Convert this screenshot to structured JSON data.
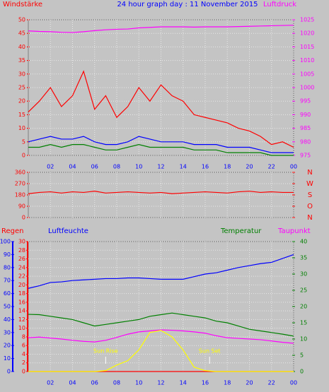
{
  "chart_data": [
    {
      "type": "line",
      "title": "24 hour graph day : 11 November 2015",
      "ylabel": "Windstärke",
      "y2label": "Luftdruck",
      "x": [
        0,
        1,
        2,
        3,
        4,
        5,
        6,
        7,
        8,
        9,
        10,
        11,
        12,
        13,
        14,
        15,
        16,
        17,
        18,
        19,
        20,
        21,
        22,
        23,
        24
      ],
      "xlim": [
        0,
        24
      ],
      "xticks": [
        {
          "value": 2,
          "label": "02"
        },
        {
          "value": 4,
          "label": "04"
        },
        {
          "value": 6,
          "label": "06"
        },
        {
          "value": 8,
          "label": "08"
        },
        10,
        12,
        14,
        16,
        18,
        20,
        22,
        {
          "value": 24,
          "label": "00"
        }
      ],
      "ylim": [
        0,
        50
      ],
      "yticks": [
        0,
        5,
        10,
        15,
        20,
        25,
        30,
        35,
        40,
        45,
        50
      ],
      "y2lim": [
        975,
        1025
      ],
      "y2ticks": [
        975,
        980,
        985,
        990,
        995,
        1000,
        1005,
        1010,
        1015,
        1020,
        1025
      ],
      "axis_colors": {
        "y": "#ff0000",
        "y2": "#ff00ff"
      },
      "series": [
        {
          "color": "#ff0000",
          "values": [
            16,
            20,
            25,
            18,
            22,
            31,
            17,
            22,
            14,
            18,
            25,
            20,
            26,
            22,
            20,
            15,
            14,
            13,
            12,
            10,
            9,
            7,
            4,
            5,
            3
          ]
        },
        {
          "color": "#008000",
          "values": [
            3,
            3,
            4,
            3,
            4,
            4,
            3,
            2,
            2,
            3,
            4,
            3,
            3,
            3,
            3,
            2,
            2,
            2,
            1,
            1,
            1,
            1,
            0,
            0,
            0
          ]
        },
        {
          "color": "#0000ff",
          "values": [
            5,
            6,
            7,
            6,
            6,
            7,
            5,
            4,
            4,
            5,
            7,
            6,
            5,
            5,
            5,
            4,
            4,
            4,
            3,
            3,
            3,
            2,
            1,
            1,
            1
          ]
        },
        {
          "color": "#ff00ff",
          "axis": "y2",
          "values": [
            1020.9,
            1020.7,
            1020.6,
            1020.4,
            1020.3,
            1020.6,
            1021.0,
            1021.3,
            1021.5,
            1021.6,
            1022.0,
            1022.2,
            1022.4,
            1022.4,
            1022.4,
            1022.3,
            1022.4,
            1022.4,
            1022.4,
            1022.5,
            1022.6,
            1022.7,
            1022.8,
            1022.9,
            1023.0
          ]
        }
      ],
      "grid": true
    },
    {
      "type": "line",
      "x": [
        0,
        1,
        2,
        3,
        4,
        5,
        6,
        7,
        8,
        9,
        10,
        11,
        12,
        13,
        14,
        15,
        16,
        17,
        18,
        19,
        20,
        21,
        22,
        23,
        24
      ],
      "xlim": [
        0,
        24
      ],
      "xticks": [
        2,
        4,
        6,
        8,
        10,
        12,
        14,
        16,
        18,
        20,
        22,
        24
      ],
      "ylim": [
        0,
        360
      ],
      "yticks": [
        0,
        90,
        180,
        270,
        360
      ],
      "y2lim": [
        0,
        360
      ],
      "y2ticks": [
        {
          "value": 360,
          "label": "N"
        },
        {
          "value": 270,
          "label": "W"
        },
        {
          "value": 180,
          "label": "S"
        },
        {
          "value": 90,
          "label": "O"
        },
        {
          "value": 0,
          "label": "N"
        }
      ],
      "axis_colors": {
        "y": "#ff0000",
        "y2": "#ff0000"
      },
      "series": [
        {
          "color": "#ff0000",
          "values": [
            190,
            200,
            205,
            195,
            205,
            200,
            210,
            195,
            200,
            205,
            200,
            195,
            200,
            190,
            195,
            200,
            205,
            200,
            195,
            205,
            210,
            200,
            205,
            200,
            200
          ]
        }
      ],
      "grid": true
    },
    {
      "type": "line",
      "x": [
        0,
        1,
        2,
        3,
        4,
        5,
        6,
        7,
        8,
        9,
        10,
        11,
        12,
        13,
        14,
        15,
        16,
        17,
        18,
        19,
        20,
        21,
        22,
        23,
        24
      ],
      "xlim": [
        0,
        24
      ],
      "xticks": [
        {
          "value": 2,
          "label": "02"
        },
        {
          "value": 4,
          "label": "04"
        },
        {
          "value": 6,
          "label": "06"
        },
        {
          "value": 8,
          "label": "08"
        },
        10,
        12,
        14,
        16,
        18,
        20,
        22,
        {
          "value": 24,
          "label": "00"
        }
      ],
      "ylim": [
        0,
        30
      ],
      "yticks": [
        0,
        2,
        4,
        6,
        8,
        10,
        12,
        14,
        16,
        18,
        20,
        22,
        24,
        26,
        28,
        30
      ],
      "y2lim": [
        0,
        40
      ],
      "y2ticks": [
        0,
        5,
        10,
        15,
        20,
        25,
        30,
        35,
        40
      ],
      "y3lim": [
        0,
        100
      ],
      "y3ticks": [
        0,
        10,
        20,
        30,
        40,
        50,
        60,
        70,
        80,
        90,
        100
      ],
      "axis_colors": {
        "y": "#ff0000",
        "y2": "#008000",
        "y3": "#0000ff"
      },
      "series": [
        {
          "name": "Regen",
          "color": "#ff0000",
          "values": [
            0,
            0,
            0,
            0,
            0,
            0,
            0,
            0,
            0,
            0,
            0,
            0,
            0,
            0,
            0,
            0,
            0,
            0,
            0,
            0,
            0,
            0,
            0,
            0,
            0
          ]
        },
        {
          "name": "Luftfeuchte",
          "color": "#0000ff",
          "axis": "y3",
          "values": [
            64,
            66,
            68.5,
            69,
            70,
            70.5,
            71,
            71.5,
            71.5,
            72,
            72,
            71.5,
            71,
            71,
            71,
            73,
            75,
            76,
            78,
            80,
            81.5,
            83,
            84,
            87,
            90
          ]
        },
        {
          "name": "Temperatur",
          "color": "#008000",
          "axis": "y2",
          "values": [
            17.6,
            17.5,
            17,
            16.5,
            16,
            15,
            14,
            14.5,
            15,
            15.5,
            16,
            17,
            17.5,
            18,
            17.5,
            17,
            16.5,
            15.5,
            15,
            14,
            13,
            12.5,
            12,
            11.5,
            10.9
          ]
        },
        {
          "name": "Taupunkt",
          "color": "#ff00ff",
          "axis": "y2",
          "values": [
            10.4,
            10.6,
            10.3,
            10,
            9.6,
            9.3,
            9.1,
            9.6,
            10.5,
            11.5,
            12.2,
            12.5,
            12.8,
            12.7,
            12.5,
            12.2,
            11.8,
            11,
            10.4,
            10.2,
            10,
            9.8,
            9.4,
            9,
            8.7
          ]
        },
        {
          "color": "#ffff00",
          "values": [
            0,
            0,
            0,
            0,
            0,
            0,
            0,
            0.2,
            1.5,
            2.5,
            5,
            9,
            9.5,
            8,
            5,
            1,
            0.2,
            0,
            0,
            0,
            0,
            0,
            0,
            0,
            0
          ]
        }
      ],
      "annotations": [
        {
          "text": "Sun Rise",
          "x": 7
        },
        {
          "text": "Sun Set",
          "x": 16.4
        }
      ],
      "grid": true
    }
  ]
}
